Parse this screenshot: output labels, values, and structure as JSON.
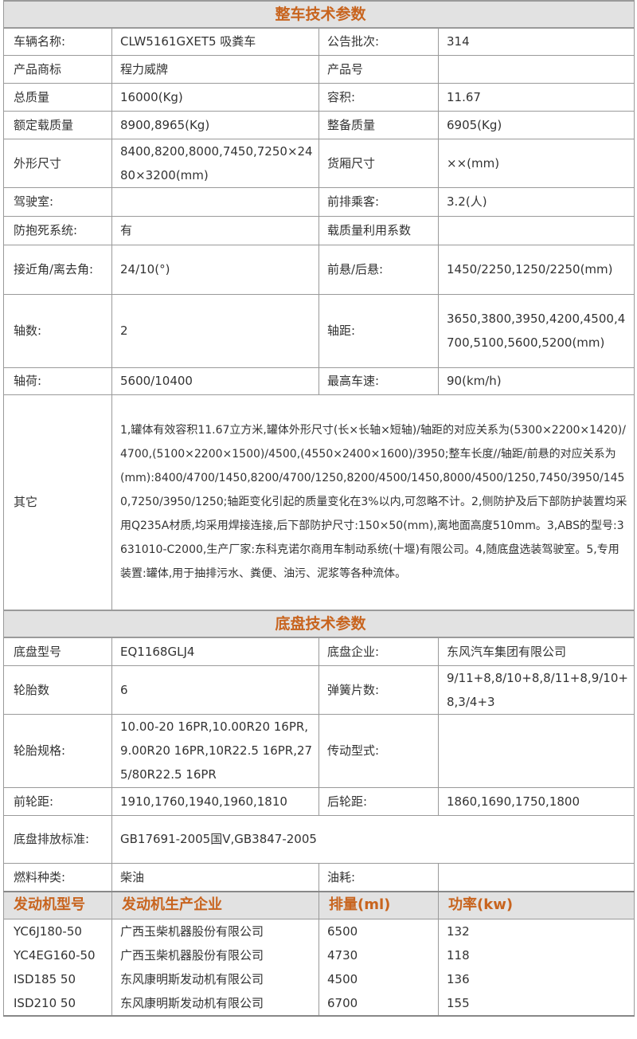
{
  "vehicle_section_title": "整车技术参数",
  "vehicle_rows": [
    [
      "车辆名称:",
      "CLW5161GXET5 吸粪车",
      "公告批次:",
      "314"
    ],
    [
      "产品商标",
      "程力威牌",
      "产品号",
      ""
    ],
    [
      "总质量",
      "16000(Kg)",
      "容积:",
      "11.67"
    ],
    [
      "额定载质量",
      "8900,8965(Kg)",
      "整备质量",
      "6905(Kg)"
    ],
    [
      "外形尺寸",
      "8400,8200,8000,7450,7250×2480×3200(mm)",
      "货厢尺寸",
      "××(mm)"
    ],
    [
      "驾驶室:",
      "",
      "前排乘客:",
      "3.2(人)"
    ],
    [
      "防抱死系统:",
      "有",
      "载质量利用系数",
      ""
    ],
    [
      "接近角/离去角:",
      "24/10(°)",
      "前悬/后悬:",
      "1450/2250,1250/2250(mm)"
    ],
    [
      "轴数:",
      "2",
      "轴距:",
      "3650,3800,3950,4200,4500,4700,5100,5600,5200(mm)"
    ],
    [
      "轴荷:",
      "5600/10400",
      "最高车速:",
      "90(km/h)"
    ]
  ],
  "other": {
    "label": "其它",
    "text": "1,罐体有效容积11.67立方米,罐体外形尺寸(长×长轴×短轴)/轴距的对应关系为(5300×2200×1420)/4700,(5100×2200×1500)/4500,(4550×2400×1600)/3950;整车长度//轴距/前悬的对应关系为(mm):8400/4700/1450,8200/4700/1250,8200/4500/1450,8000/4500/1250,7450/3950/1450,7250/3950/1250;轴距变化引起的质量变化在3%以内,可忽略不计。2,侧防护及后下部防护装置均采用Q235A材质,均采用焊接连接,后下部防护尺寸:150×50(mm),离地面高度510mm。3,ABS的型号:3631010-C2000,生产厂家:东科克诺尔商用车制动系统(十堰)有限公司。4,随底盘选装驾驶室。5,专用装置:罐体,用于抽排污水、粪便、油污、泥浆等各种流体。"
  },
  "chassis_section_title": "底盘技术参数",
  "chassis_rows": [
    [
      "底盘型号",
      "EQ1168GLJ4",
      "底盘企业:",
      "东风汽车集团有限公司"
    ],
    [
      "轮胎数",
      "6",
      "弹簧片数:",
      "9/11+8,8/10+8,8/11+8,9/10+8,3/4+3"
    ],
    [
      "轮胎规格:",
      "10.00-20 16PR,10.00R20 16PR,9.00R20 16PR,10R22.5 16PR,275/80R22.5 16PR",
      "传动型式:",
      ""
    ],
    [
      "前轮距:",
      "1910,1760,1940,1960,1810",
      "后轮距:",
      "1860,1690,1750,1800"
    ],
    [
      "底盘排放标准:",
      "GB17691-2005国V,GB3847-2005"
    ],
    [
      "燃料种类:",
      "柴油",
      "油耗:",
      ""
    ]
  ],
  "engine_headers": [
    "发动机型号",
    "发动机生产企业",
    "排量(ml)",
    "功率(kw)"
  ],
  "engine_rows": [
    [
      "YC6J180-50",
      "广西玉柴机器股份有限公司",
      "6500",
      "132"
    ],
    [
      "YC4EG160-50",
      "广西玉柴机器股份有限公司",
      "4730",
      "118"
    ],
    [
      "ISD185 50",
      "东风康明斯发动机有限公司",
      "4500",
      "136"
    ],
    [
      "ISD210 50",
      "东风康明斯发动机有限公司",
      "6700",
      "155"
    ]
  ],
  "colors": {
    "accent": "#c8641e",
    "header_bg": "#e2e2e2",
    "border": "#9a9a9a"
  }
}
